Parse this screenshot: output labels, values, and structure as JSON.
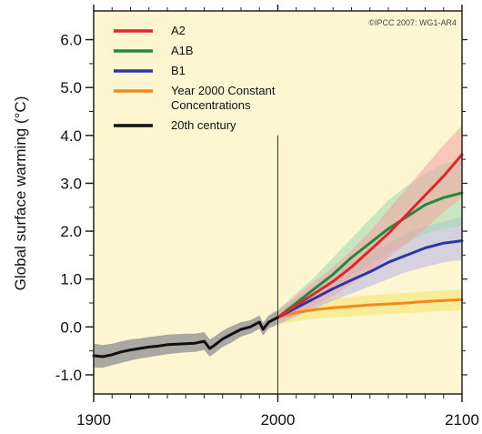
{
  "chart_data": {
    "type": "line",
    "title": "",
    "credit": "©IPCC 2007: WG1-AR4",
    "xlabel": "",
    "ylabel": "Global surface warming (°C)",
    "xlim": [
      1900,
      2100
    ],
    "ylim": [
      -1.4,
      6.6
    ],
    "x_ticks": [
      1900,
      2000,
      2100
    ],
    "x_tick_labels": [
      "1900",
      "2000",
      "2100"
    ],
    "y_ticks": [
      -1.0,
      0.0,
      1.0,
      2.0,
      3.0,
      4.0,
      5.0,
      6.0
    ],
    "y_tick_labels": [
      "-1.0",
      "0.0",
      "1.0",
      "2.0",
      "3.0",
      "4.0",
      "5.0",
      "6.0"
    ],
    "divider_year": 2000,
    "grid": false,
    "legend_position": "top-left",
    "background_color": "#fdf6d0",
    "series": [
      {
        "name": "A2",
        "color": "#e0262a",
        "band_color": "#f2a3a3",
        "x": [
          2000,
          2010,
          2020,
          2030,
          2040,
          2050,
          2060,
          2070,
          2080,
          2090,
          2100
        ],
        "values": [
          0.2,
          0.45,
          0.7,
          0.95,
          1.25,
          1.6,
          1.95,
          2.35,
          2.75,
          3.15,
          3.6
        ],
        "lower": [
          0.05,
          0.25,
          0.45,
          0.65,
          0.9,
          1.15,
          1.45,
          1.75,
          2.05,
          2.4,
          2.7
        ],
        "upper": [
          0.35,
          0.65,
          0.95,
          1.25,
          1.6,
          2.0,
          2.45,
          2.9,
          3.35,
          3.8,
          4.2
        ]
      },
      {
        "name": "A1B",
        "color": "#1e8a3c",
        "band_color": "#9ed8b0",
        "x": [
          2000,
          2010,
          2020,
          2030,
          2040,
          2050,
          2060,
          2070,
          2080,
          2090,
          2100
        ],
        "values": [
          0.2,
          0.5,
          0.8,
          1.1,
          1.45,
          1.75,
          2.05,
          2.3,
          2.55,
          2.7,
          2.8
        ],
        "lower": [
          0.05,
          0.3,
          0.55,
          0.8,
          1.05,
          1.3,
          1.55,
          1.75,
          1.95,
          2.05,
          2.1
        ],
        "upper": [
          0.35,
          0.7,
          1.05,
          1.45,
          1.85,
          2.25,
          2.65,
          2.95,
          3.2,
          3.4,
          3.5
        ]
      },
      {
        "name": "B1",
        "color": "#2b36a8",
        "band_color": "#b7b4e8",
        "x": [
          2000,
          2010,
          2020,
          2030,
          2040,
          2050,
          2060,
          2070,
          2080,
          2090,
          2100
        ],
        "values": [
          0.2,
          0.4,
          0.6,
          0.8,
          0.98,
          1.15,
          1.35,
          1.5,
          1.65,
          1.75,
          1.8
        ],
        "lower": [
          0.05,
          0.22,
          0.38,
          0.55,
          0.7,
          0.85,
          1.0,
          1.15,
          1.25,
          1.35,
          1.4
        ],
        "upper": [
          0.35,
          0.6,
          0.85,
          1.1,
          1.35,
          1.55,
          1.75,
          1.95,
          2.1,
          2.2,
          2.3
        ]
      },
      {
        "name": "Year 2000 Constant Concentrations",
        "color": "#f08a1e",
        "band_color": "#f5e36a",
        "x": [
          2000,
          2010,
          2020,
          2030,
          2040,
          2050,
          2060,
          2070,
          2080,
          2090,
          2100
        ],
        "values": [
          0.2,
          0.3,
          0.36,
          0.4,
          0.43,
          0.46,
          0.48,
          0.5,
          0.53,
          0.55,
          0.57
        ],
        "lower": [
          0.05,
          0.12,
          0.17,
          0.2,
          0.22,
          0.25,
          0.27,
          0.29,
          0.31,
          0.33,
          0.35
        ],
        "upper": [
          0.35,
          0.48,
          0.55,
          0.6,
          0.63,
          0.66,
          0.69,
          0.71,
          0.74,
          0.76,
          0.78
        ]
      },
      {
        "name": "20th century",
        "color": "#111111",
        "band_color": "#9a9a9a",
        "x": [
          1900,
          1905,
          1910,
          1915,
          1920,
          1925,
          1930,
          1935,
          1940,
          1945,
          1950,
          1955,
          1960,
          1963,
          1965,
          1970,
          1975,
          1980,
          1985,
          1990,
          1992,
          1995,
          2000
        ],
        "values": [
          -0.6,
          -0.62,
          -0.58,
          -0.52,
          -0.48,
          -0.45,
          -0.42,
          -0.4,
          -0.37,
          -0.36,
          -0.35,
          -0.34,
          -0.3,
          -0.45,
          -0.4,
          -0.25,
          -0.15,
          -0.05,
          0.0,
          0.1,
          -0.05,
          0.1,
          0.2
        ],
        "lower": [
          -0.85,
          -0.85,
          -0.8,
          -0.75,
          -0.7,
          -0.66,
          -0.63,
          -0.6,
          -0.57,
          -0.55,
          -0.53,
          -0.52,
          -0.48,
          -0.62,
          -0.57,
          -0.42,
          -0.32,
          -0.2,
          -0.14,
          -0.04,
          -0.18,
          -0.03,
          0.05
        ],
        "upper": [
          -0.35,
          -0.38,
          -0.35,
          -0.3,
          -0.26,
          -0.24,
          -0.21,
          -0.19,
          -0.16,
          -0.15,
          -0.14,
          -0.14,
          -0.11,
          -0.26,
          -0.22,
          -0.08,
          0.02,
          0.1,
          0.14,
          0.24,
          0.09,
          0.24,
          0.35
        ]
      }
    ]
  }
}
